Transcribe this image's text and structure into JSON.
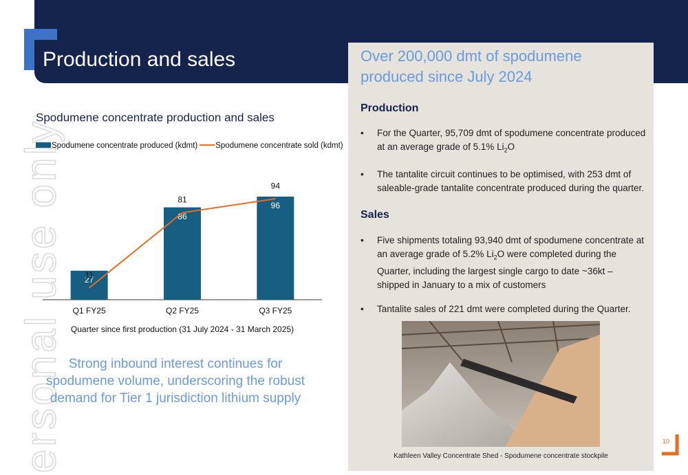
{
  "header": {
    "title": "Production and sales"
  },
  "watermark": "ersonal use only",
  "chart_data": {
    "type": "bar",
    "title": "Spodumene concentrate production and sales",
    "categories": [
      "Q1 FY25",
      "Q2 FY25",
      "Q3 FY25"
    ],
    "x_label": "Quarter since first production (31 July 2024 - 31 March 2025)",
    "series": [
      {
        "name": "Spodumene concentrate produced (kdmt)",
        "type": "bar",
        "color": "#165e82",
        "values": [
          27,
          86,
          96
        ]
      },
      {
        "name": "Spodumene concentrate sold (kdmt)",
        "type": "line",
        "color": "#ee6a1e",
        "values": [
          11,
          81,
          94
        ]
      }
    ]
  },
  "callout": "Strong inbound interest continues for spodumene volume, underscoring the robust demand for Tier 1 jurisdiction lithium supply",
  "panel": {
    "headline": "Over 200,000 dmt of spodumene produced since July 2024",
    "sections": [
      {
        "heading": "Production",
        "bullets": [
          [
            "For the Quarter, 95,709 dmt of spodumene concentrate produced at an average grade of 5.1% Li",
            "2",
            "O"
          ],
          [
            "The tantalite circuit continues to be optimised, with 253 dmt of saleable-grade tantalite concentrate produced during the quarter."
          ]
        ]
      },
      {
        "heading": "Sales",
        "bullets": [
          [
            "Five shipments totaling 93,940 dmt of spodumene concentrate at an average grade of 5.2% Li",
            "2",
            "O were completed during the Quarter, including the largest single cargo to date ~36kt – shipped in January to a mix of customers"
          ],
          [
            "Tantalite sales of 221 dmt were completed during the Quarter."
          ]
        ]
      }
    ],
    "caption": "Kathleen Valley Concentrate Shed - Spodumene concentrate stockpile"
  },
  "page_number": "10"
}
